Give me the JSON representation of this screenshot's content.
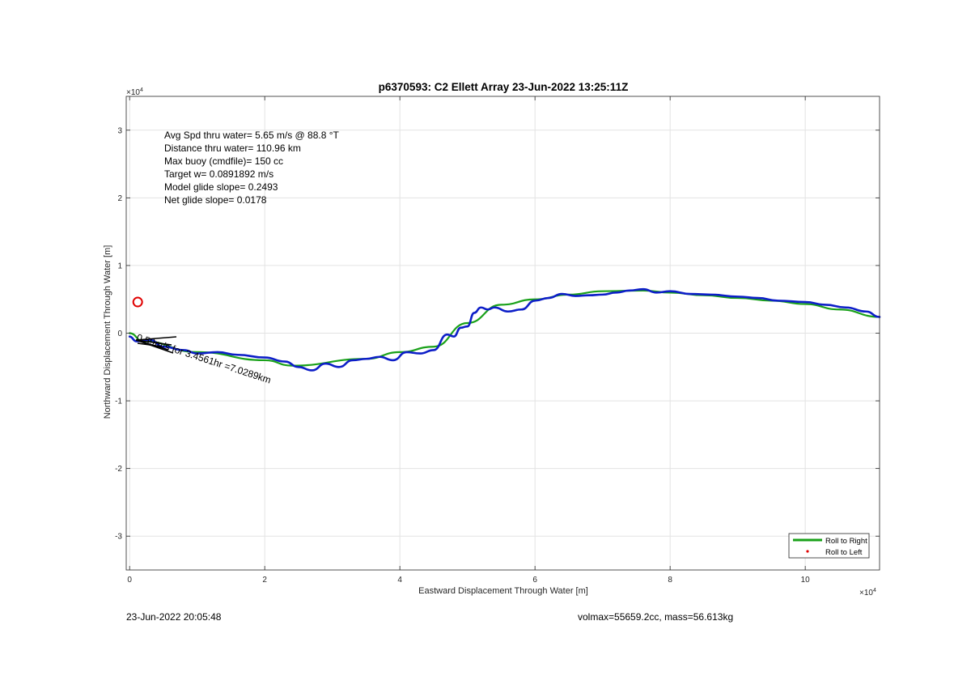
{
  "chart_data": {
    "type": "line",
    "title": "p6370593: C2 Ellett Array 23-Jun-2022 13:25:11Z",
    "xlabel": "Eastward Displacement Through Water [m]",
    "ylabel": "Northward Displacement Through Water [m]",
    "xlim": [
      -0.05,
      11.1
    ],
    "ylim": [
      -3.5,
      3.5
    ],
    "x_exponent_label": "×10",
    "x_exponent": "4",
    "y_exponent_label": "×10",
    "y_exponent": "4",
    "x_ticks": [
      0,
      2,
      4,
      6,
      8,
      10
    ],
    "y_ticks": [
      -3,
      -2,
      -1,
      0,
      1,
      2,
      3
    ],
    "grid": true,
    "legend_position": "bottom-right",
    "annotations": [
      "Avg Spd thru water=  5.65 m/s @  88.8 °T",
      "Distance thru water= 110.96 km",
      "Max buoy (cmdfile)= 150 cc",
      "Target w= 0.0891892 m/s",
      "Model glide slope= 0.2493",
      "Net glide slope= 0.0178"
    ],
    "segment_label": "0.59m/s for 3.4561hr =7.0289km",
    "series": [
      {
        "name": "Roll to Right",
        "color": "#1aa11a",
        "x": [
          0,
          0.2,
          1.0,
          2.0,
          2.4,
          3.5,
          4.0,
          4.5,
          5.0,
          5.5,
          6.0,
          6.5,
          7.0,
          7.6,
          8.0,
          8.5,
          9.0,
          9.5,
          10.0,
          10.5,
          11.1
        ],
        "y": [
          0,
          -0.12,
          -0.28,
          -0.4,
          -0.48,
          -0.38,
          -0.28,
          -0.2,
          0.15,
          0.42,
          0.5,
          0.57,
          0.62,
          0.63,
          0.6,
          0.56,
          0.52,
          0.48,
          0.43,
          0.35,
          0.24
        ]
      },
      {
        "name": "Roll to Left",
        "color": "#e00000",
        "marker": "dot",
        "x": [
          0.12
        ],
        "y": [
          0.46
        ]
      },
      {
        "name": "",
        "color": "#0d1ec8",
        "x": [
          0,
          0.1,
          0.3,
          0.5,
          0.8,
          1.0,
          1.3,
          1.6,
          2.0,
          2.3,
          2.5,
          2.7,
          2.9,
          3.1,
          3.3,
          3.5,
          3.7,
          3.9,
          4.1,
          4.3,
          4.5,
          4.7,
          4.8,
          4.9,
          5.0,
          5.1,
          5.2,
          5.3,
          5.4,
          5.6,
          5.8,
          6.0,
          6.2,
          6.4,
          6.6,
          6.8,
          7.0,
          7.2,
          7.4,
          7.6,
          7.8,
          8.0,
          8.3,
          8.6,
          9.0,
          9.3,
          9.6,
          10.0,
          10.3,
          10.6,
          10.9,
          11.1
        ],
        "y": [
          -0.05,
          -0.12,
          -0.1,
          -0.2,
          -0.25,
          -0.3,
          -0.28,
          -0.32,
          -0.36,
          -0.42,
          -0.5,
          -0.55,
          -0.45,
          -0.5,
          -0.4,
          -0.38,
          -0.35,
          -0.4,
          -0.28,
          -0.3,
          -0.25,
          -0.02,
          -0.05,
          0.08,
          0.1,
          0.3,
          0.38,
          0.35,
          0.38,
          0.32,
          0.35,
          0.48,
          0.52,
          0.58,
          0.55,
          0.56,
          0.57,
          0.6,
          0.63,
          0.65,
          0.6,
          0.62,
          0.58,
          0.57,
          0.54,
          0.52,
          0.48,
          0.46,
          0.42,
          0.38,
          0.32,
          0.24
        ]
      }
    ]
  },
  "footer": {
    "timestamp": "23-Jun-2022 20:05:48",
    "volume_mass": "volmax=55659.2cc, mass=56.613kg"
  }
}
